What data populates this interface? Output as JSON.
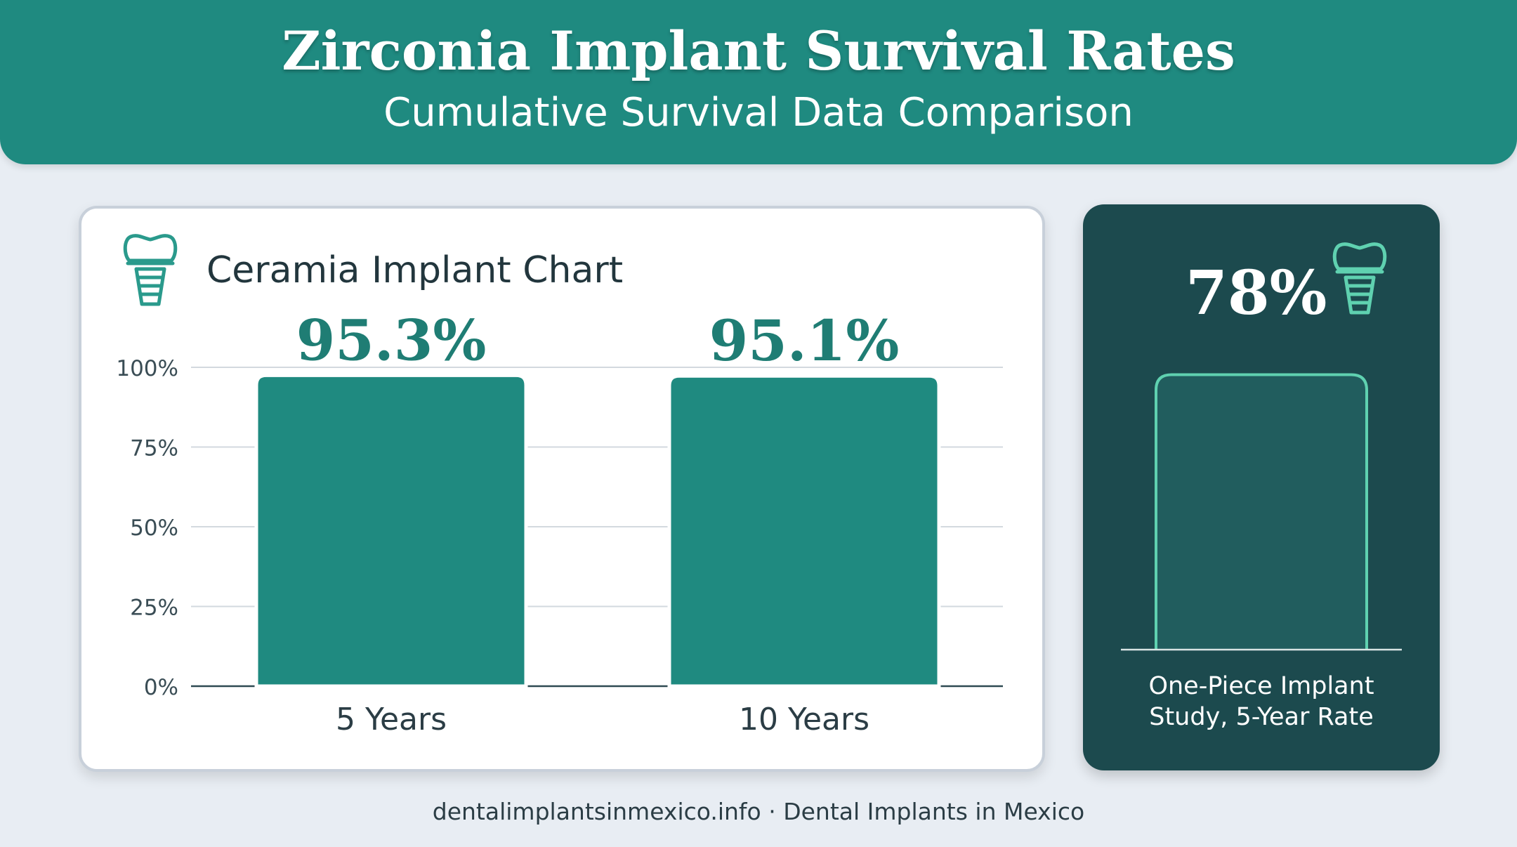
{
  "header": {
    "title": "Zirconia Implant Survival Rates",
    "subtitle": "Cumulative Survival Data Comparison"
  },
  "chart_panel": {
    "title": "Ceramia Implant Chart",
    "icon": "dental-implant-icon"
  },
  "chart_data": [
    {
      "type": "bar",
      "title": "Ceramia Implant Chart",
      "categories": [
        "5 Years",
        "10 Years"
      ],
      "values": [
        95.3,
        95.1
      ],
      "data_labels": [
        "95.3%",
        "95.1%"
      ],
      "ylim": [
        0,
        100
      ],
      "yticks": [
        "0%",
        "25%",
        "50%",
        "75%",
        "100%"
      ],
      "ytick_values": [
        0,
        25,
        50,
        75,
        100
      ],
      "grid": true,
      "bar_color": "#1f8a80",
      "label_color": "#1f7d74"
    },
    {
      "type": "bar",
      "categories": [
        "One-Piece Implant Study, 5-Year Rate"
      ],
      "values": [
        78
      ],
      "data_labels": [
        "78%"
      ],
      "ylim": [
        0,
        100
      ],
      "bar_fill": "#215d5e",
      "bar_outline": "#5fd1b0"
    }
  ],
  "side_panel": {
    "value": "78%",
    "caption_line1": "One-Piece Implant",
    "caption_line2": "Study, 5-Year Rate",
    "icon": "dental-implant-icon"
  },
  "footer": {
    "text": "dentalimplantsinmexico.info · Dental Implants in Mexico"
  },
  "colors": {
    "background": "#e8edf3",
    "header": "#1f8a80",
    "side_panel": "#1c4a4e",
    "accent_outline": "#5fd1b0"
  }
}
